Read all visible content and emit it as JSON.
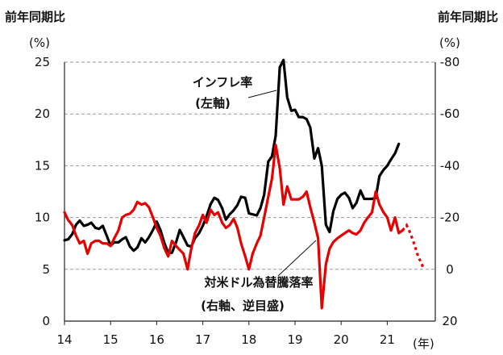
{
  "chart_data": {
    "type": "line",
    "left_header": "前年同期比",
    "right_header": "前年同期比",
    "left_unit": "(%)",
    "right_unit": "(%)",
    "x_unit": "(年)",
    "left_axis": {
      "ylim": [
        0,
        25
      ],
      "ticks": [
        "0",
        "5",
        "10",
        "15",
        "20",
        "25"
      ]
    },
    "right_axis": {
      "ylim": [
        20,
        -80
      ],
      "ticks": [
        "20",
        "0",
        "-20",
        "-40",
        "-60",
        "-80"
      ]
    },
    "x_ticks": [
      "14",
      "15",
      "16",
      "17",
      "18",
      "19",
      "20",
      "21"
    ],
    "grid": true,
    "series": [
      {
        "name": "インフレ率",
        "label_line1": "インフレ率",
        "label_line2": "(左軸)",
        "axis": "left",
        "color": "#000000",
        "points": [
          [
            2014.0,
            7.8
          ],
          [
            2014.08,
            7.9
          ],
          [
            2014.17,
            8.4
          ],
          [
            2014.25,
            9.3
          ],
          [
            2014.33,
            9.7
          ],
          [
            2014.42,
            9.2
          ],
          [
            2014.5,
            9.3
          ],
          [
            2014.58,
            9.5
          ],
          [
            2014.67,
            9.0
          ],
          [
            2014.75,
            8.9
          ],
          [
            2014.83,
            9.2
          ],
          [
            2014.92,
            8.2
          ],
          [
            2015.0,
            7.3
          ],
          [
            2015.08,
            7.6
          ],
          [
            2015.17,
            7.6
          ],
          [
            2015.25,
            7.9
          ],
          [
            2015.33,
            8.1
          ],
          [
            2015.42,
            7.2
          ],
          [
            2015.5,
            6.8
          ],
          [
            2015.58,
            7.1
          ],
          [
            2015.67,
            8.0
          ],
          [
            2015.75,
            7.6
          ],
          [
            2015.83,
            8.1
          ],
          [
            2015.92,
            8.8
          ],
          [
            2016.0,
            9.6
          ],
          [
            2016.08,
            8.8
          ],
          [
            2016.17,
            7.5
          ],
          [
            2016.25,
            6.6
          ],
          [
            2016.33,
            6.6
          ],
          [
            2016.42,
            7.6
          ],
          [
            2016.5,
            8.8
          ],
          [
            2016.58,
            8.1
          ],
          [
            2016.67,
            7.3
          ],
          [
            2016.75,
            7.2
          ],
          [
            2016.83,
            8.0
          ],
          [
            2016.92,
            8.5
          ],
          [
            2017.0,
            9.2
          ],
          [
            2017.08,
            10.1
          ],
          [
            2017.17,
            11.3
          ],
          [
            2017.25,
            11.9
          ],
          [
            2017.33,
            11.7
          ],
          [
            2017.42,
            10.9
          ],
          [
            2017.5,
            9.8
          ],
          [
            2017.58,
            10.3
          ],
          [
            2017.67,
            10.7
          ],
          [
            2017.75,
            11.2
          ],
          [
            2017.83,
            12.0
          ],
          [
            2017.92,
            11.9
          ],
          [
            2018.0,
            10.4
          ],
          [
            2018.08,
            10.3
          ],
          [
            2018.17,
            10.2
          ],
          [
            2018.25,
            10.9
          ],
          [
            2018.33,
            12.2
          ],
          [
            2018.42,
            15.4
          ],
          [
            2018.5,
            15.9
          ],
          [
            2018.58,
            17.9
          ],
          [
            2018.67,
            24.5
          ],
          [
            2018.75,
            25.2
          ],
          [
            2018.83,
            21.6
          ],
          [
            2018.92,
            20.3
          ],
          [
            2019.0,
            20.4
          ],
          [
            2019.08,
            19.7
          ],
          [
            2019.17,
            19.7
          ],
          [
            2019.25,
            19.5
          ],
          [
            2019.33,
            18.7
          ],
          [
            2019.42,
            15.7
          ],
          [
            2019.5,
            16.7
          ],
          [
            2019.58,
            15.0
          ],
          [
            2019.67,
            9.3
          ],
          [
            2019.75,
            8.6
          ],
          [
            2019.83,
            10.6
          ],
          [
            2019.92,
            11.8
          ],
          [
            2020.0,
            12.2
          ],
          [
            2020.08,
            12.4
          ],
          [
            2020.17,
            11.9
          ],
          [
            2020.25,
            10.9
          ],
          [
            2020.33,
            11.4
          ],
          [
            2020.42,
            12.6
          ],
          [
            2020.5,
            11.8
          ],
          [
            2020.58,
            11.8
          ],
          [
            2020.67,
            11.8
          ],
          [
            2020.75,
            11.9
          ],
          [
            2020.83,
            14.0
          ],
          [
            2020.92,
            14.6
          ],
          [
            2021.0,
            15.0
          ],
          [
            2021.08,
            15.6
          ],
          [
            2021.17,
            16.2
          ],
          [
            2021.25,
            17.1
          ]
        ]
      },
      {
        "name": "対米ドル為替騰落率",
        "label_line1": "対米ドル為替騰落率",
        "label_line2": "(右軸、逆目盛)",
        "axis": "right",
        "color": "#e60000",
        "points": [
          [
            2014.0,
            -22.0
          ],
          [
            2014.08,
            -19.0
          ],
          [
            2014.17,
            -17.0
          ],
          [
            2014.25,
            -13.0
          ],
          [
            2014.33,
            -10.0
          ],
          [
            2014.42,
            -11.0
          ],
          [
            2014.5,
            -6.0
          ],
          [
            2014.58,
            -10.0
          ],
          [
            2014.67,
            -11.0
          ],
          [
            2014.75,
            -11.0
          ],
          [
            2014.83,
            -10.0
          ],
          [
            2014.92,
            -10.0
          ],
          [
            2015.0,
            -9.0
          ],
          [
            2015.08,
            -12.0
          ],
          [
            2015.17,
            -15.0
          ],
          [
            2015.25,
            -20.0
          ],
          [
            2015.33,
            -21.0
          ],
          [
            2015.42,
            -21.5
          ],
          [
            2015.5,
            -23.0
          ],
          [
            2015.58,
            -26.0
          ],
          [
            2015.67,
            -25.0
          ],
          [
            2015.75,
            -25.5
          ],
          [
            2015.83,
            -24.0
          ],
          [
            2015.92,
            -20.0
          ],
          [
            2016.0,
            -16.0
          ],
          [
            2016.08,
            -13.0
          ],
          [
            2016.17,
            -8.0
          ],
          [
            2016.25,
            -5.0
          ],
          [
            2016.33,
            -11.0
          ],
          [
            2016.42,
            -9.0
          ],
          [
            2016.5,
            -7.5
          ],
          [
            2016.58,
            -6.0
          ],
          [
            2016.67,
            0.0
          ],
          [
            2016.75,
            -8.0
          ],
          [
            2016.83,
            -14.0
          ],
          [
            2016.92,
            -17.0
          ],
          [
            2017.0,
            -21.0
          ],
          [
            2017.08,
            -18.0
          ],
          [
            2017.17,
            -23.0
          ],
          [
            2017.25,
            -21.0
          ],
          [
            2017.33,
            -22.0
          ],
          [
            2017.42,
            -18.0
          ],
          [
            2017.5,
            -16.0
          ],
          [
            2017.58,
            -17.0
          ],
          [
            2017.67,
            -19.5
          ],
          [
            2017.75,
            -16.0
          ],
          [
            2017.83,
            -10.0
          ],
          [
            2017.92,
            -5.0
          ],
          [
            2018.0,
            0.0
          ],
          [
            2018.08,
            -6.0
          ],
          [
            2018.17,
            -10.0
          ],
          [
            2018.25,
            -13.0
          ],
          [
            2018.33,
            -20.0
          ],
          [
            2018.42,
            -28.0
          ],
          [
            2018.5,
            -35.0
          ],
          [
            2018.58,
            -48.0
          ],
          [
            2018.67,
            -39.0
          ],
          [
            2018.75,
            -25.0
          ],
          [
            2018.83,
            -32.0
          ],
          [
            2018.92,
            -27.0
          ],
          [
            2019.0,
            -27.0
          ],
          [
            2019.08,
            -27.0
          ],
          [
            2019.17,
            -28.0
          ],
          [
            2019.25,
            -30.0
          ],
          [
            2019.33,
            -24.0
          ],
          [
            2019.42,
            -18.0
          ],
          [
            2019.5,
            -12.0
          ],
          [
            2019.58,
            15.0
          ],
          [
            2019.67,
            -2.0
          ],
          [
            2019.75,
            -8.0
          ],
          [
            2019.83,
            -10.5
          ],
          [
            2019.92,
            -12.0
          ],
          [
            2020.0,
            -13.0
          ],
          [
            2020.08,
            -14.0
          ],
          [
            2020.17,
            -15.0
          ],
          [
            2020.25,
            -14.0
          ],
          [
            2020.33,
            -13.5
          ],
          [
            2020.42,
            -15.0
          ],
          [
            2020.5,
            -18.0
          ],
          [
            2020.58,
            -20.0
          ],
          [
            2020.67,
            -22.0
          ],
          [
            2020.75,
            -30.0
          ],
          [
            2020.83,
            -25.0
          ],
          [
            2020.92,
            -22.0
          ],
          [
            2021.0,
            -20.0
          ],
          [
            2021.08,
            -15.0
          ],
          [
            2021.17,
            -20.0
          ],
          [
            2021.25,
            -14.0
          ],
          [
            2021.33,
            -15.0
          ]
        ],
        "projection_points": [
          [
            2021.33,
            -15.0
          ],
          [
            2021.42,
            -17.0
          ],
          [
            2021.5,
            -14.0
          ],
          [
            2021.58,
            -10.0
          ],
          [
            2021.67,
            -5.0
          ],
          [
            2021.75,
            -2.0
          ],
          [
            2021.79,
            0.0
          ]
        ]
      }
    ]
  }
}
